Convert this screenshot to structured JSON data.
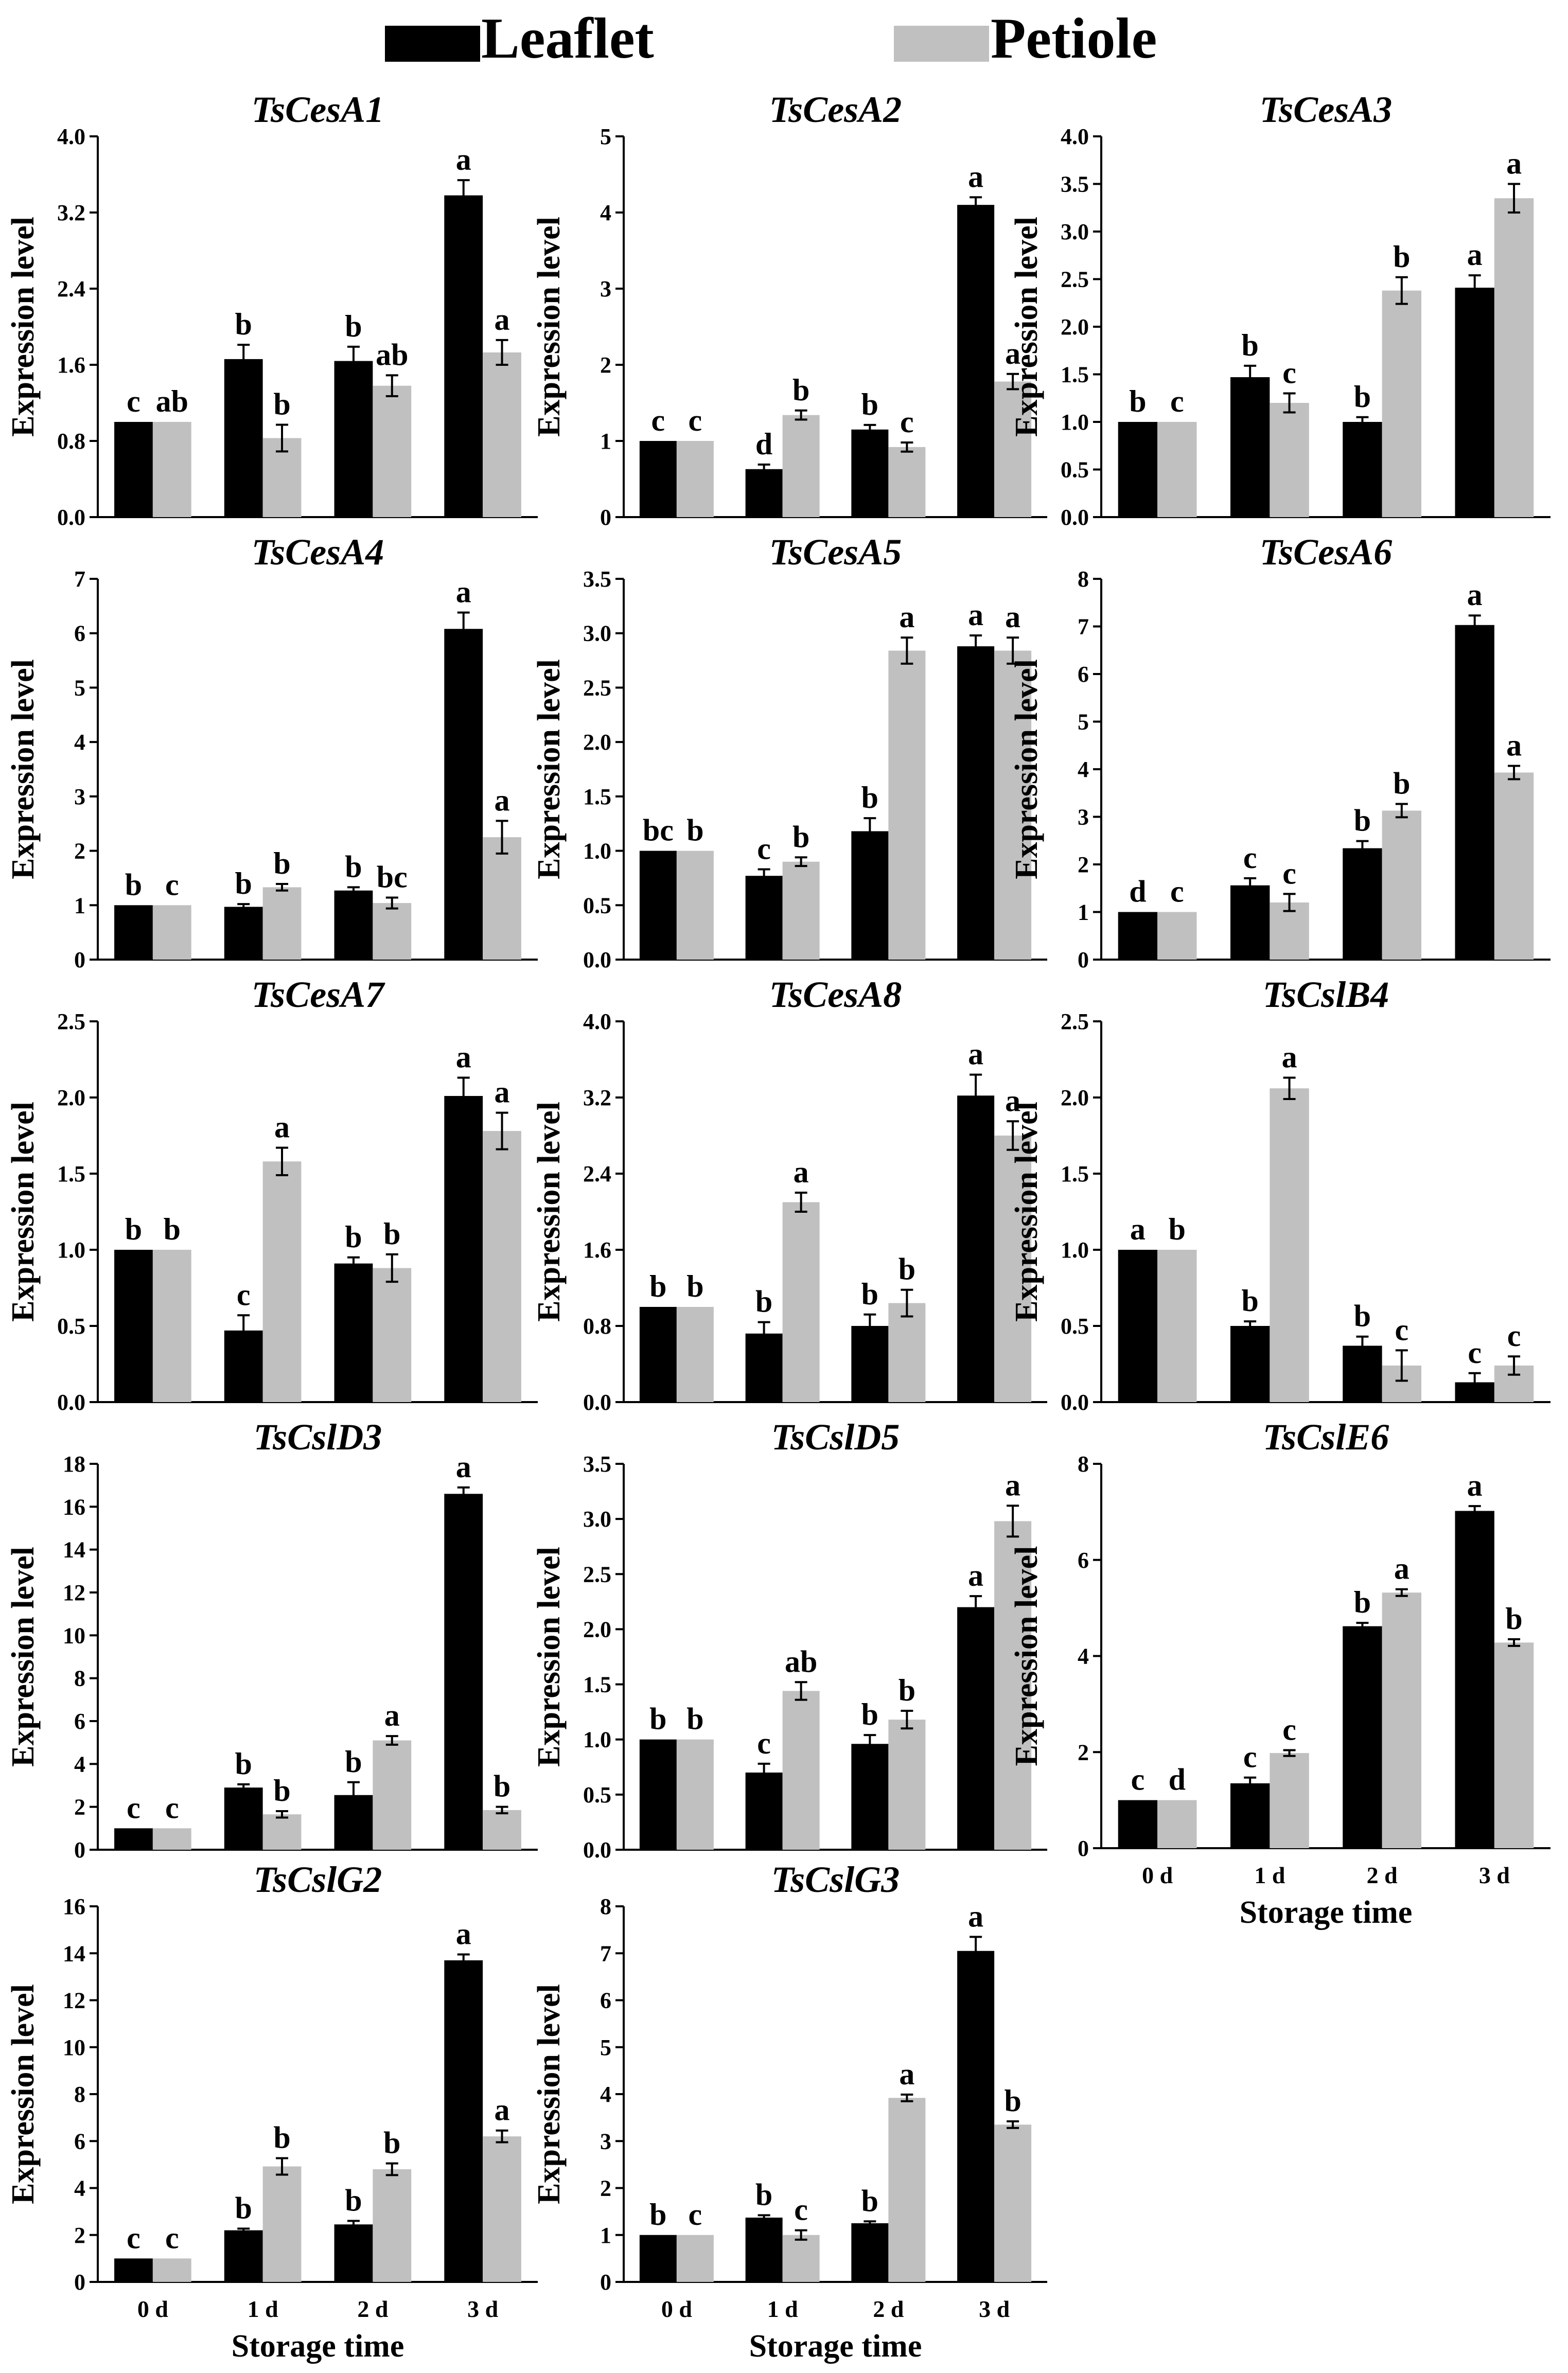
{
  "legend": {
    "items": [
      {
        "name": "Leaflet",
        "color": "#000000"
      },
      {
        "name": "Petiole",
        "color": "#c0c0c0"
      }
    ]
  },
  "colors": {
    "leaflet": "#000000",
    "petiole": "#c0c0c0",
    "axis": "#000000"
  },
  "chart_data": [
    {
      "type": "bar",
      "title": "TsCesA1",
      "ylabel": "Expression level",
      "xlabel": "",
      "categories": [
        "0 d",
        "1 d",
        "2 d",
        "3 d"
      ],
      "ylim": [
        0,
        4.0
      ],
      "yticks": [
        "0.0",
        "0.8",
        "1.6",
        "2.4",
        "3.2",
        "4.0"
      ],
      "show_xticks": false,
      "series": [
        {
          "name": "Leaflet",
          "values": [
            1.0,
            1.66,
            1.64,
            3.38
          ],
          "errors": [
            0.0,
            0.15,
            0.15,
            0.16
          ],
          "letters": [
            "c",
            "b",
            "b",
            "a"
          ]
        },
        {
          "name": "Petiole",
          "values": [
            1.0,
            0.83,
            1.38,
            1.73
          ],
          "errors": [
            0.0,
            0.14,
            0.11,
            0.13
          ],
          "letters": [
            "ab",
            "b",
            "ab",
            "a"
          ]
        }
      ]
    },
    {
      "type": "bar",
      "title": "TsCesA2",
      "ylabel": "Expression level",
      "xlabel": "",
      "categories": [
        "0 d",
        "1 d",
        "2 d",
        "3 d"
      ],
      "ylim": [
        0,
        5
      ],
      "yticks": [
        "0",
        "1",
        "2",
        "3",
        "4",
        "5"
      ],
      "show_xticks": false,
      "series": [
        {
          "name": "Leaflet",
          "values": [
            1.0,
            0.63,
            1.15,
            4.1
          ],
          "errors": [
            0.0,
            0.06,
            0.06,
            0.1
          ],
          "letters": [
            "c",
            "d",
            "b",
            "a"
          ]
        },
        {
          "name": "Petiole",
          "values": [
            1.0,
            1.34,
            0.92,
            1.78
          ],
          "errors": [
            0.0,
            0.06,
            0.06,
            0.1
          ],
          "letters": [
            "c",
            "b",
            "c",
            "a"
          ]
        }
      ]
    },
    {
      "type": "bar",
      "title": "TsCesA3",
      "ylabel": "Expression level",
      "xlabel": "",
      "categories": [
        "0 d",
        "1 d",
        "2 d",
        "3 d"
      ],
      "ylim": [
        0,
        4.0
      ],
      "yticks": [
        "0.0",
        "0.5",
        "1.0",
        "1.5",
        "2.0",
        "2.5",
        "3.0",
        "3.5",
        "4.0"
      ],
      "show_xticks": false,
      "series": [
        {
          "name": "Leaflet",
          "values": [
            1.0,
            1.47,
            1.0,
            2.41
          ],
          "errors": [
            0.0,
            0.12,
            0.05,
            0.13
          ],
          "letters": [
            "b",
            "b",
            "b",
            "a"
          ]
        },
        {
          "name": "Petiole",
          "values": [
            1.0,
            1.2,
            2.38,
            3.35
          ],
          "errors": [
            0.0,
            0.1,
            0.14,
            0.15
          ],
          "letters": [
            "c",
            "c",
            "b",
            "a"
          ]
        }
      ]
    },
    {
      "type": "bar",
      "title": "TsCesA4",
      "ylabel": "Expression level",
      "xlabel": "",
      "categories": [
        "0 d",
        "1 d",
        "2 d",
        "3 d"
      ],
      "ylim": [
        0,
        7
      ],
      "yticks": [
        "0",
        "1",
        "2",
        "3",
        "4",
        "5",
        "6",
        "7"
      ],
      "show_xticks": false,
      "series": [
        {
          "name": "Leaflet",
          "values": [
            1.0,
            0.97,
            1.27,
            6.08
          ],
          "errors": [
            0.0,
            0.05,
            0.06,
            0.3
          ],
          "letters": [
            "b",
            "b",
            "b",
            "a"
          ]
        },
        {
          "name": "Petiole",
          "values": [
            1.0,
            1.33,
            1.04,
            2.25
          ],
          "errors": [
            0.0,
            0.06,
            0.1,
            0.3
          ],
          "letters": [
            "c",
            "b",
            "bc",
            "a"
          ]
        }
      ]
    },
    {
      "type": "bar",
      "title": "TsCesA5",
      "ylabel": "Expression level",
      "xlabel": "",
      "categories": [
        "0 d",
        "1 d",
        "2 d",
        "3 d"
      ],
      "ylim": [
        0,
        3.5
      ],
      "yticks": [
        "0.0",
        "0.5",
        "1.0",
        "1.5",
        "2.0",
        "2.5",
        "3.0",
        "3.5"
      ],
      "show_xticks": false,
      "series": [
        {
          "name": "Leaflet",
          "values": [
            1.0,
            0.77,
            1.18,
            2.88
          ],
          "errors": [
            0.0,
            0.06,
            0.12,
            0.1
          ],
          "letters": [
            "bc",
            "c",
            "b",
            "a"
          ]
        },
        {
          "name": "Petiole",
          "values": [
            1.0,
            0.9,
            2.84,
            2.84
          ],
          "errors": [
            0.0,
            0.04,
            0.12,
            0.12
          ],
          "letters": [
            "b",
            "b",
            "a",
            "a"
          ]
        }
      ]
    },
    {
      "type": "bar",
      "title": "TsCesA6",
      "ylabel": "Expression level",
      "xlabel": "",
      "categories": [
        "0 d",
        "1 d",
        "2 d",
        "3 d"
      ],
      "ylim": [
        0,
        8
      ],
      "yticks": [
        "0",
        "1",
        "2",
        "3",
        "4",
        "5",
        "6",
        "7",
        "8"
      ],
      "show_xticks": false,
      "series": [
        {
          "name": "Leaflet",
          "values": [
            1.0,
            1.56,
            2.34,
            7.03
          ],
          "errors": [
            0.0,
            0.15,
            0.15,
            0.2
          ],
          "letters": [
            "d",
            "c",
            "b",
            "a"
          ]
        },
        {
          "name": "Petiole",
          "values": [
            1.0,
            1.2,
            3.13,
            3.93
          ],
          "errors": [
            0.0,
            0.18,
            0.14,
            0.14
          ],
          "letters": [
            "c",
            "c",
            "b",
            "a"
          ]
        }
      ]
    },
    {
      "type": "bar",
      "title": "TsCesA7",
      "ylabel": "Expression level",
      "xlabel": "",
      "categories": [
        "0 d",
        "1 d",
        "2 d",
        "3 d"
      ],
      "ylim": [
        0,
        2.5
      ],
      "yticks": [
        "0.0",
        "0.5",
        "1.0",
        "1.5",
        "2.0",
        "2.5"
      ],
      "show_xticks": false,
      "series": [
        {
          "name": "Leaflet",
          "values": [
            1.0,
            0.47,
            0.91,
            2.01
          ],
          "errors": [
            0.0,
            0.1,
            0.04,
            0.12
          ],
          "letters": [
            "b",
            "c",
            "b",
            "a"
          ]
        },
        {
          "name": "Petiole",
          "values": [
            1.0,
            1.58,
            0.88,
            1.78
          ],
          "errors": [
            0.0,
            0.09,
            0.09,
            0.12
          ],
          "letters": [
            "b",
            "a",
            "b",
            "a"
          ]
        }
      ]
    },
    {
      "type": "bar",
      "title": "TsCesA8",
      "ylabel": "Expression level",
      "xlabel": "",
      "categories": [
        "0 d",
        "1 d",
        "2 d",
        "3 d"
      ],
      "ylim": [
        0,
        4.0
      ],
      "yticks": [
        "0.0",
        "0.8",
        "1.6",
        "2.4",
        "3.2",
        "4.0"
      ],
      "show_xticks": false,
      "series": [
        {
          "name": "Leaflet",
          "values": [
            1.0,
            0.72,
            0.8,
            3.22
          ],
          "errors": [
            0.0,
            0.12,
            0.12,
            0.22
          ],
          "letters": [
            "b",
            "b",
            "b",
            "a"
          ]
        },
        {
          "name": "Petiole",
          "values": [
            1.0,
            2.1,
            1.04,
            2.8
          ],
          "errors": [
            0.0,
            0.1,
            0.14,
            0.15
          ],
          "letters": [
            "b",
            "a",
            "b",
            "a"
          ]
        }
      ]
    },
    {
      "type": "bar",
      "title": "TsCslB4",
      "ylabel": "Expression level",
      "xlabel": "",
      "categories": [
        "0 d",
        "1 d",
        "2 d",
        "3 d"
      ],
      "ylim": [
        0,
        2.5
      ],
      "yticks": [
        "0.0",
        "0.5",
        "1.0",
        "1.5",
        "2.0",
        "2.5"
      ],
      "show_xticks": false,
      "series": [
        {
          "name": "Leaflet",
          "values": [
            1.0,
            0.5,
            0.37,
            0.13
          ],
          "errors": [
            0.0,
            0.03,
            0.06,
            0.06
          ],
          "letters": [
            "a",
            "b",
            "b",
            "c"
          ]
        },
        {
          "name": "Petiole",
          "values": [
            1.0,
            2.06,
            0.24,
            0.24
          ],
          "errors": [
            0.0,
            0.07,
            0.1,
            0.06
          ],
          "letters": [
            "b",
            "a",
            "c",
            "c"
          ]
        }
      ]
    },
    {
      "type": "bar",
      "title": "TsCslD3",
      "ylabel": "Expression level",
      "xlabel": "",
      "categories": [
        "0 d",
        "1 d",
        "2 d",
        "3 d"
      ],
      "ylim": [
        0,
        18
      ],
      "yticks": [
        "0",
        "2",
        "4",
        "6",
        "8",
        "10",
        "12",
        "14",
        "16",
        "18"
      ],
      "show_xticks": false,
      "series": [
        {
          "name": "Leaflet",
          "values": [
            1.0,
            2.9,
            2.55,
            16.6
          ],
          "errors": [
            0.0,
            0.15,
            0.6,
            0.3
          ],
          "letters": [
            "c",
            "b",
            "b",
            "a"
          ]
        },
        {
          "name": "Petiole",
          "values": [
            1.0,
            1.65,
            5.1,
            1.85
          ],
          "errors": [
            0.0,
            0.15,
            0.2,
            0.15
          ],
          "letters": [
            "c",
            "b",
            "a",
            "b"
          ]
        }
      ]
    },
    {
      "type": "bar",
      "title": "TsCslD5",
      "ylabel": "Expression level",
      "xlabel": "",
      "categories": [
        "0 d",
        "1 d",
        "2 d",
        "3 d"
      ],
      "ylim": [
        0,
        3.5
      ],
      "yticks": [
        "0.0",
        "0.5",
        "1.0",
        "1.5",
        "2.0",
        "2.5",
        "3.0",
        "3.5"
      ],
      "show_xticks": false,
      "series": [
        {
          "name": "Leaflet",
          "values": [
            1.0,
            0.7,
            0.96,
            2.2
          ],
          "errors": [
            0.0,
            0.08,
            0.08,
            0.1
          ],
          "letters": [
            "b",
            "c",
            "b",
            "a"
          ]
        },
        {
          "name": "Petiole",
          "values": [
            1.0,
            1.44,
            1.18,
            2.98
          ],
          "errors": [
            0.0,
            0.08,
            0.08,
            0.14
          ],
          "letters": [
            "b",
            "ab",
            "b",
            "a"
          ]
        }
      ]
    },
    {
      "type": "bar",
      "title": "TsCslE6",
      "ylabel": "Expression level",
      "xlabel": "Storage time",
      "categories": [
        "0 d",
        "1 d",
        "2 d",
        "3 d"
      ],
      "ylim": [
        0,
        8
      ],
      "yticks": [
        "0",
        "2",
        "4",
        "6",
        "8"
      ],
      "show_xticks": true,
      "series": [
        {
          "name": "Leaflet",
          "values": [
            1.0,
            1.35,
            4.62,
            7.02
          ],
          "errors": [
            0.0,
            0.12,
            0.07,
            0.1
          ],
          "letters": [
            "c",
            "c",
            "b",
            "a"
          ]
        },
        {
          "name": "Petiole",
          "values": [
            1.0,
            1.98,
            5.32,
            4.28
          ],
          "errors": [
            0.0,
            0.06,
            0.07,
            0.07
          ],
          "letters": [
            "d",
            "c",
            "a",
            "b"
          ]
        }
      ]
    },
    {
      "type": "bar",
      "title": "TsCslG2",
      "ylabel": "Expression level",
      "xlabel": "Storage time",
      "categories": [
        "0 d",
        "1 d",
        "2 d",
        "3 d"
      ],
      "ylim": [
        0,
        16
      ],
      "yticks": [
        "0",
        "2",
        "4",
        "6",
        "8",
        "10",
        "12",
        "14",
        "16"
      ],
      "show_xticks": true,
      "series": [
        {
          "name": "Leaflet",
          "values": [
            1.0,
            2.2,
            2.45,
            13.7
          ],
          "errors": [
            0.0,
            0.07,
            0.15,
            0.25
          ],
          "letters": [
            "c",
            "b",
            "b",
            "a"
          ]
        },
        {
          "name": "Petiole",
          "values": [
            1.0,
            4.92,
            4.8,
            6.2
          ],
          "errors": [
            0.0,
            0.35,
            0.25,
            0.25
          ],
          "letters": [
            "c",
            "b",
            "b",
            "a"
          ]
        }
      ]
    },
    {
      "type": "bar",
      "title": "TsCslG3",
      "ylabel": "Expression level",
      "xlabel": "Storage time",
      "categories": [
        "0 d",
        "1 d",
        "2 d",
        "3 d"
      ],
      "ylim": [
        0,
        8
      ],
      "yticks": [
        "0",
        "1",
        "2",
        "3",
        "4",
        "5",
        "6",
        "7",
        "8"
      ],
      "show_xticks": true,
      "series": [
        {
          "name": "Leaflet",
          "values": [
            1.0,
            1.37,
            1.25,
            7.05
          ],
          "errors": [
            0.0,
            0.05,
            0.04,
            0.3
          ],
          "letters": [
            "b",
            "b",
            "b",
            "a"
          ]
        },
        {
          "name": "Petiole",
          "values": [
            1.0,
            1.0,
            3.92,
            3.35
          ],
          "errors": [
            0.0,
            0.1,
            0.07,
            0.07
          ],
          "letters": [
            "c",
            "c",
            "a",
            "b"
          ]
        }
      ]
    }
  ]
}
